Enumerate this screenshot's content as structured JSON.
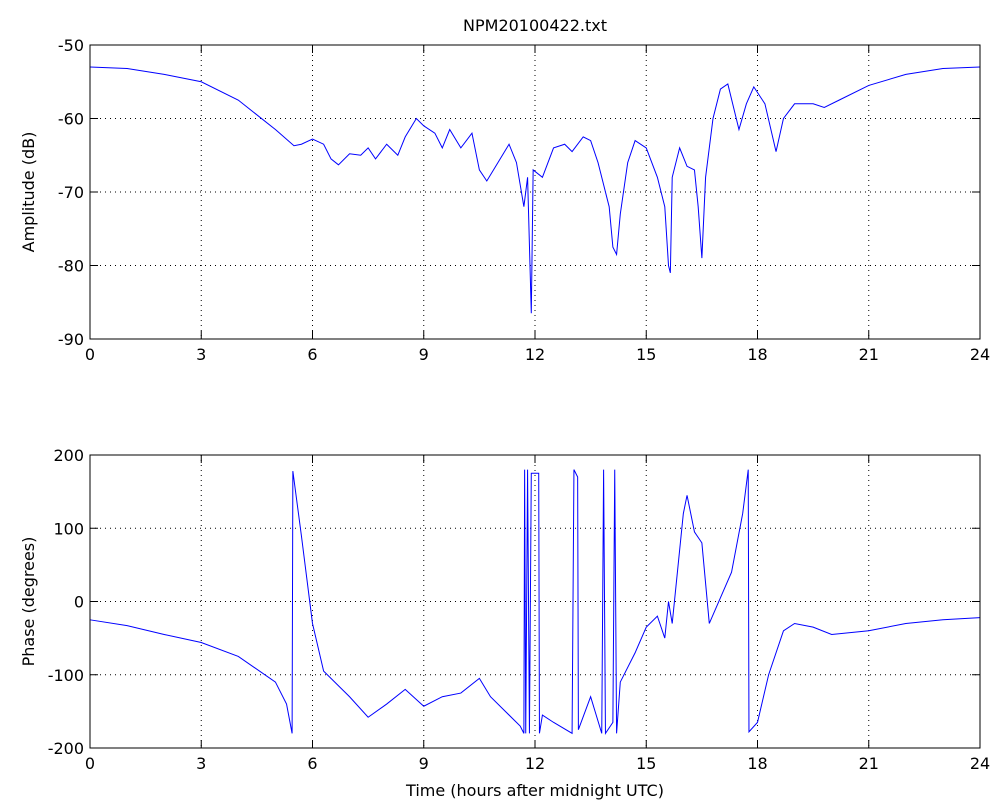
{
  "chart_data": [
    {
      "type": "line",
      "title": "NPM20100422.txt",
      "ylabel": "Amplitude (dB)",
      "color": "#0000ff",
      "grid": true,
      "xlim": [
        0,
        24
      ],
      "xticks": [
        0,
        3,
        6,
        9,
        12,
        15,
        18,
        21,
        24
      ],
      "ylim": [
        -90,
        -50
      ],
      "yticks": [
        -90,
        -80,
        -70,
        -60,
        -50
      ],
      "x": [
        0,
        1,
        2,
        3,
        4,
        5,
        5.5,
        5.7,
        6,
        6.3,
        6.5,
        6.7,
        7,
        7.3,
        7.5,
        7.7,
        8,
        8.3,
        8.5,
        8.8,
        9,
        9.3,
        9.5,
        9.7,
        10,
        10.3,
        10.5,
        10.7,
        11,
        11.3,
        11.5,
        11.7,
        11.8,
        11.9,
        11.95,
        12.2,
        12.5,
        12.8,
        13,
        13.3,
        13.5,
        13.7,
        14,
        14.1,
        14.2,
        14.3,
        14.5,
        14.7,
        15,
        15.3,
        15.5,
        15.6,
        15.65,
        15.7,
        15.9,
        16.1,
        16.3,
        16.4,
        16.5,
        16.6,
        16.8,
        17,
        17.2,
        17.5,
        17.7,
        17.9,
        18.2,
        18.5,
        18.7,
        19,
        19.5,
        19.8,
        20.2,
        21,
        22,
        23,
        24
      ],
      "values": [
        -53,
        -53.2,
        -54,
        -55,
        -57.5,
        -61.5,
        -63.7,
        -63.5,
        -62.8,
        -63.5,
        -65.5,
        -66.3,
        -64.8,
        -65,
        -64,
        -65.5,
        -63.5,
        -65,
        -62.5,
        -60,
        -61,
        -62,
        -64,
        -61.5,
        -64,
        -62,
        -67,
        -68.5,
        -66,
        -63.5,
        -66,
        -72,
        -68,
        -86.5,
        -67,
        -68,
        -64,
        -63.5,
        -64.5,
        -62.5,
        -63,
        -66,
        -72,
        -77.5,
        -78.5,
        -73,
        -66,
        -63,
        -64,
        -68,
        -72,
        -80,
        -81,
        -68,
        -64,
        -66.5,
        -67,
        -72,
        -79,
        -68,
        -60,
        -56,
        -55.3,
        -61.5,
        -58,
        -55.7,
        -58,
        -64.5,
        -60,
        -58,
        -58,
        -58.5,
        -57.5,
        -55.5,
        -54,
        -53.2,
        -53
      ]
    },
    {
      "type": "line",
      "ylabel": "Phase (degrees)",
      "xlabel": "Time (hours after midnight UTC)",
      "color": "#0000ff",
      "grid": true,
      "xlim": [
        0,
        24
      ],
      "xticks": [
        0,
        3,
        6,
        9,
        12,
        15,
        18,
        21,
        24
      ],
      "ylim": [
        -200,
        200
      ],
      "yticks": [
        -200,
        -100,
        0,
        100,
        200
      ],
      "x": [
        0,
        1,
        2,
        3,
        4,
        5,
        5.3,
        5.45,
        5.47,
        5.7,
        6,
        6.3,
        7,
        7.5,
        8,
        8.5,
        9,
        9.5,
        10,
        10.5,
        10.8,
        11.2,
        11.6,
        11.7,
        11.72,
        11.75,
        11.8,
        11.85,
        11.9,
        12.1,
        12.12,
        12.2,
        12.5,
        13,
        13.05,
        13.15,
        13.17,
        13.5,
        13.8,
        13.85,
        13.9,
        14.1,
        14.15,
        14.2,
        14.3,
        14.7,
        15,
        15.3,
        15.5,
        15.6,
        15.7,
        16,
        16.1,
        16.3,
        16.5,
        16.7,
        17,
        17.3,
        17.6,
        17.75,
        17.77,
        18,
        18.3,
        18.7,
        19,
        19.5,
        20,
        21,
        22,
        23,
        24
      ],
      "values": [
        -25,
        -33,
        -45,
        -56,
        -75,
        -110,
        -140,
        -180,
        178,
        90,
        -30,
        -95,
        -130,
        -158,
        -140,
        -120,
        -143,
        -130,
        -125,
        -105,
        -130,
        -150,
        -170,
        -180,
        180,
        -180,
        180,
        -180,
        175,
        175,
        -180,
        -155,
        -165,
        -180,
        180,
        170,
        -175,
        -130,
        -180,
        180,
        -180,
        -165,
        180,
        -180,
        -110,
        -70,
        -35,
        -20,
        -50,
        0,
        -30,
        120,
        145,
        95,
        80,
        -30,
        5,
        40,
        120,
        180,
        -178,
        -165,
        -100,
        -40,
        -30,
        -35,
        -45,
        -40,
        -30,
        -25,
        -22
      ]
    }
  ]
}
